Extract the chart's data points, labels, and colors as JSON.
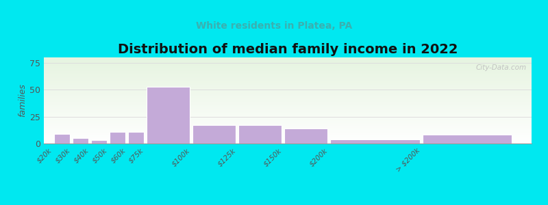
{
  "title": "Distribution of median family income in 2022",
  "subtitle": "White residents in Platea, PA",
  "ylabel": "families",
  "bar_color": "#c4aad8",
  "ylim": [
    0,
    80
  ],
  "yticks": [
    0,
    25,
    50,
    75
  ],
  "background_outer": "#00e8f0",
  "plot_bg_top": "#e6f4e0",
  "plot_bg_bottom": "#ffffff",
  "title_fontsize": 14,
  "subtitle_fontsize": 10,
  "subtitle_color": "#3ab0b0",
  "watermark": "City-Data.com",
  "bar_labels": [
    "$20k",
    "$30k",
    "$40k",
    "$50k",
    "$60k",
    "$75k",
    "$100k",
    "$125k",
    "$150k",
    "$200k",
    "> $200k"
  ],
  "bar_lefts": [
    0,
    10,
    20,
    30,
    40,
    50,
    75,
    100,
    125,
    150,
    200
  ],
  "bar_widths": [
    10,
    10,
    10,
    10,
    10,
    25,
    25,
    25,
    25,
    50,
    50
  ],
  "bar_values": [
    9,
    5,
    3,
    11,
    11,
    53,
    17,
    17,
    14,
    4,
    8
  ]
}
